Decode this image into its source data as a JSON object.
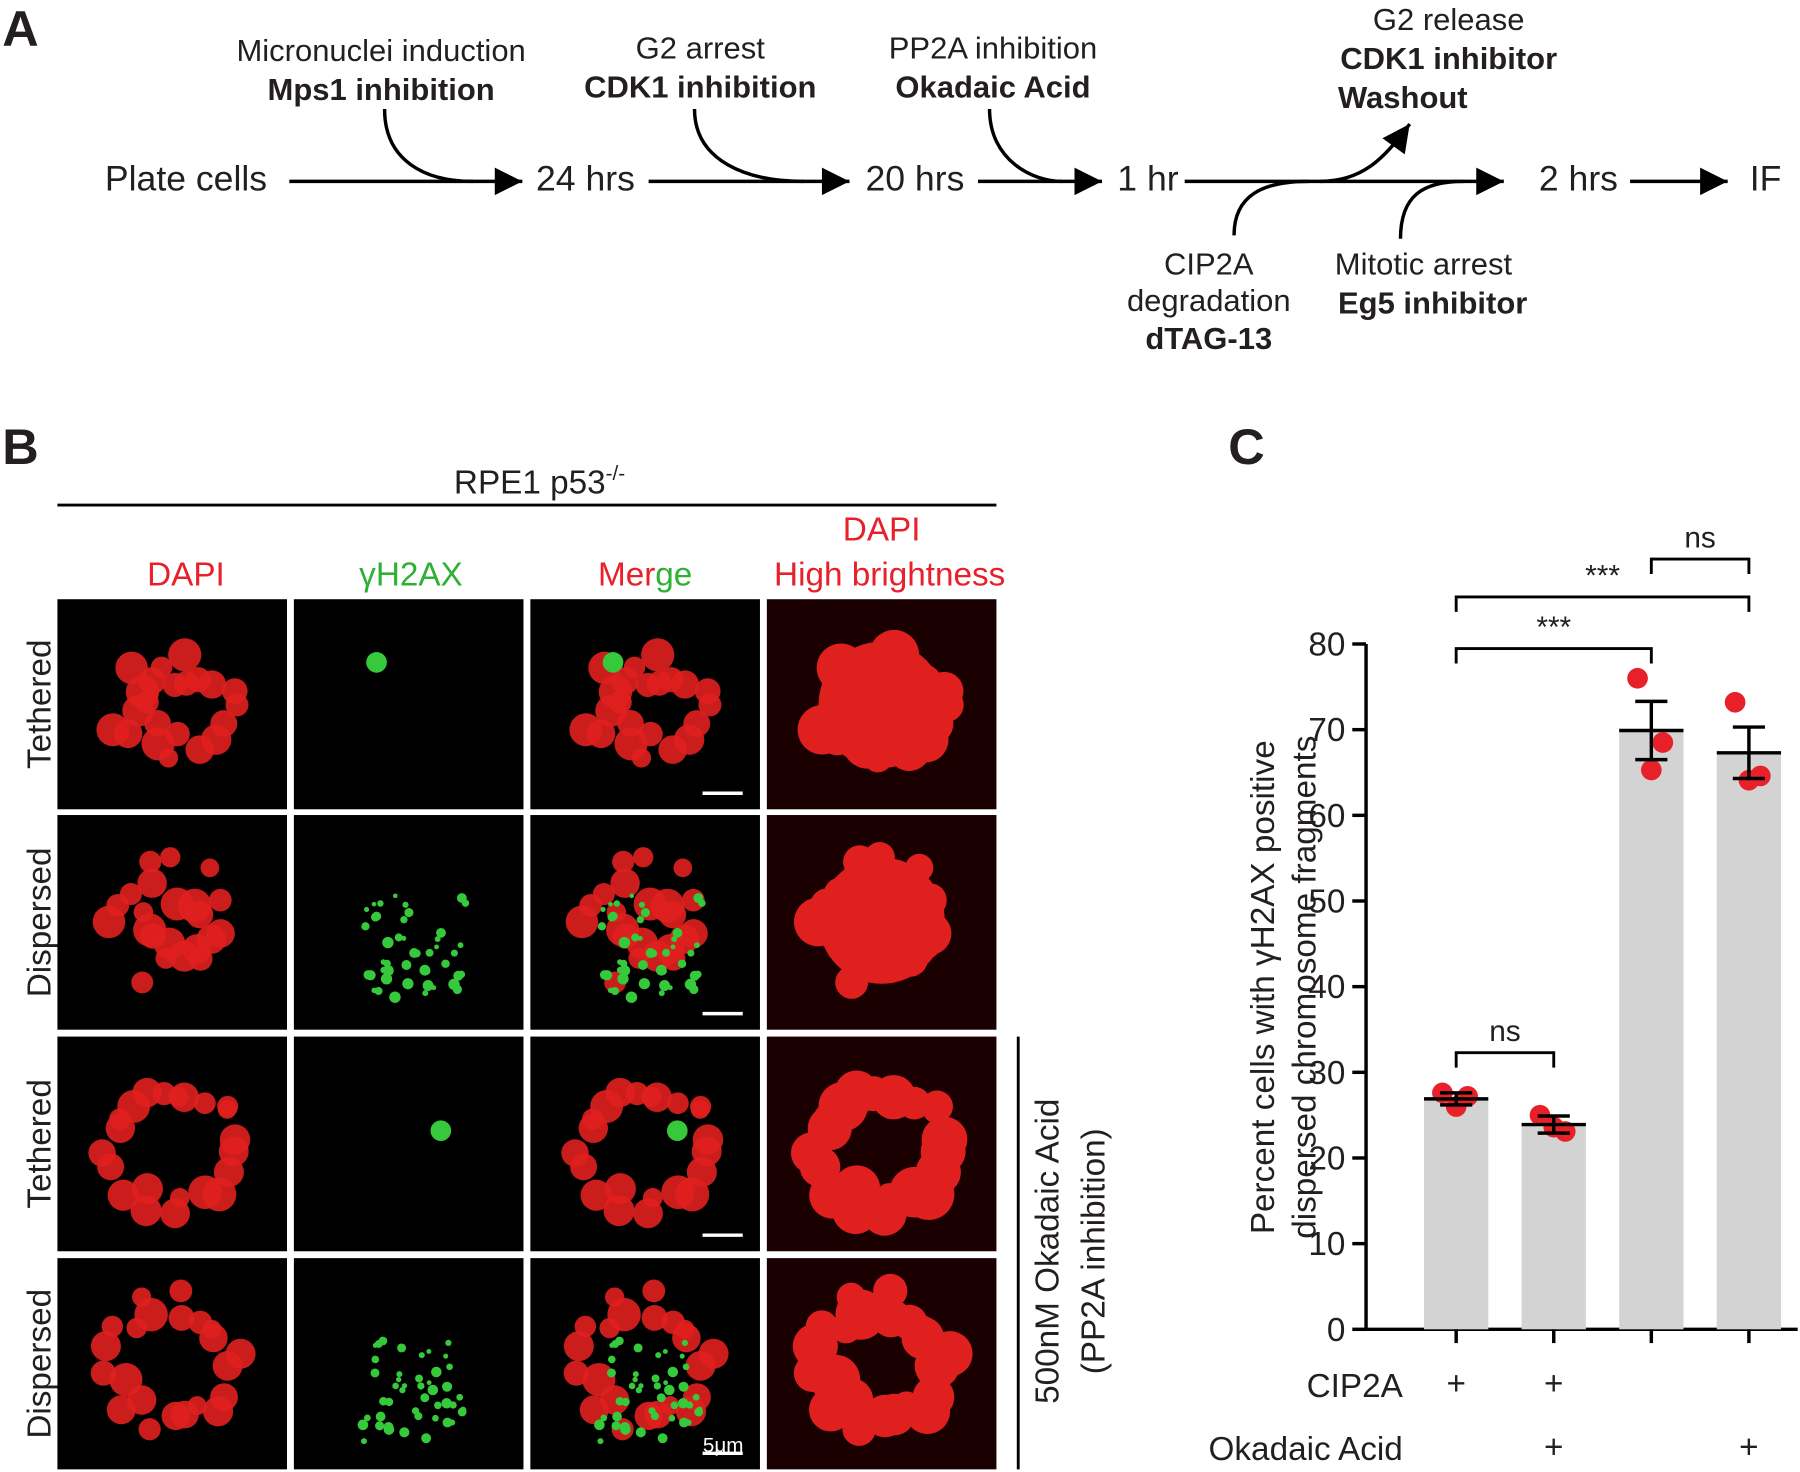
{
  "panel_a": {
    "label": "A",
    "steps": [
      "Plate cells",
      "24 hrs",
      "20 hrs",
      "1 hr",
      "2 hrs",
      "IF"
    ],
    "treatments_above": [
      [
        "Micronuclei induction",
        "Mps1 inhibition"
      ],
      [
        "G2 arrest",
        "CDK1 inhibition"
      ],
      [
        "PP2A inhibition",
        "Okadaic Acid"
      ],
      [
        "G2 release",
        "CDK1 inhibitor",
        "Washout"
      ]
    ],
    "treatments_below": [
      [
        "CIP2A",
        "degradation",
        "dTAG-13"
      ],
      [
        "Mitotic arrest",
        "Eg5 inhibitor"
      ]
    ]
  },
  "panel_b": {
    "label": "B",
    "cell_line": "RPE1 p53",
    "superscript": "-/-",
    "columns": [
      "DAPI",
      "γH2AX",
      [
        "Mer",
        "ge"
      ],
      [
        "DAPI",
        "High brightness"
      ]
    ],
    "rows": [
      "Tethered",
      "Dispersed",
      "Tethered",
      "Dispersed"
    ],
    "side_label": [
      "500nM Okadaic Acid",
      "(PP2A inhibition)"
    ],
    "scale_bar": "5μm"
  },
  "chart_data": {
    "type": "bar",
    "label": "C",
    "y_label": [
      "Percent cells with γH2AX positive",
      "dispersed chromosome fragments"
    ],
    "categories": [
      null,
      null,
      null,
      null
    ],
    "values": [
      26.9,
      23.9,
      69.9,
      67.3
    ],
    "errors": [
      0.7,
      1.0,
      3.4,
      3.0
    ],
    "points": [
      [
        27.6,
        27.2,
        26.0
      ],
      [
        25.0,
        23.1,
        23.6
      ],
      [
        76.0,
        68.5,
        65.3
      ],
      [
        73.2,
        64.6,
        64.1
      ]
    ],
    "color": "#d3d3d3",
    "point_color": "#e8202a",
    "ylim": [
      0,
      80
    ],
    "yticks": [
      0,
      10,
      20,
      30,
      40,
      50,
      60,
      70,
      80
    ],
    "conditions": [
      {
        "name": "CIP2A",
        "marks": [
          "+",
          "+",
          null,
          null
        ]
      },
      {
        "name": "Okadaic Acid",
        "marks": [
          null,
          "+",
          null,
          "+"
        ]
      }
    ],
    "comparisons": [
      {
        "text": "ns",
        "between": [
          0,
          1
        ]
      },
      {
        "text": "***",
        "between": [
          0,
          2
        ]
      },
      {
        "text": "***",
        "between": [
          0,
          3
        ]
      },
      {
        "text": "ns",
        "between": [
          2,
          3
        ]
      }
    ]
  }
}
